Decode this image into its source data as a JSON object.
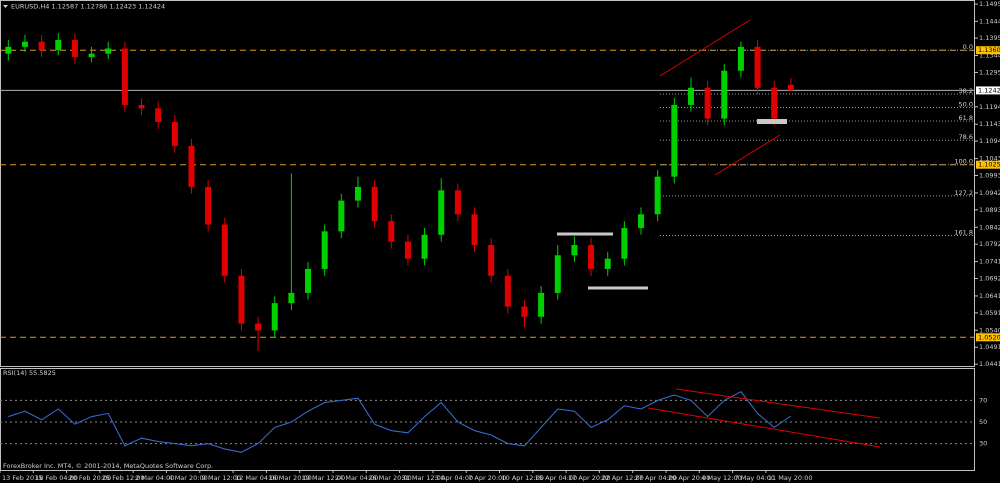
{
  "chart_data": [
    {
      "type": "candlestick",
      "title": "EURUSD,H4  1.12587 1.12786 1.12423 1.12424",
      "categories": [
        "13 Feb 2015",
        null,
        "18 Feb 04:00",
        null,
        "20 Feb 20:00",
        null,
        "25 Feb 12:00",
        null,
        "2 Mar 04:00",
        null,
        "4 Mar 20:00",
        null,
        "9 Mar 12:00",
        null,
        "12 Mar 04:00",
        null,
        "16 Mar 20:00",
        null,
        "19 Mar 12:00",
        null,
        "24 Mar 04:00",
        null,
        "26 Mar 20:00",
        null,
        "31 Mar 12:00",
        null,
        "3 Apr 04:00",
        null,
        "7 Apr 20:00",
        null,
        "10 Apr 12:00",
        null,
        "15 Apr 04:00",
        null,
        "17 Apr 20:00",
        null,
        "22 Apr 12:00",
        null,
        "27 Apr 04:00",
        null,
        "29 Apr 20:00",
        null,
        "4 May 12:00",
        null,
        "7 May 04:00",
        null,
        "11 May 20:00",
        null
      ],
      "open": [
        1.135,
        1.137,
        1.1385,
        1.136,
        1.139,
        1.134,
        1.135,
        1.1365,
        1.12,
        1.119,
        1.115,
        1.108,
        1.096,
        1.085,
        1.07,
        1.056,
        1.054,
        1.062,
        1.065,
        1.072,
        1.083,
        1.092,
        1.096,
        1.086,
        1.08,
        1.075,
        1.082,
        1.095,
        1.088,
        1.079,
        1.07,
        1.061,
        1.058,
        1.065,
        1.076,
        1.079,
        1.072,
        1.075,
        1.084,
        1.088,
        1.099,
        1.12,
        1.125,
        1.116,
        1.13,
        1.137,
        1.125,
        1.12587
      ],
      "high": [
        1.139,
        1.1405,
        1.1405,
        1.141,
        1.141,
        1.137,
        1.1385,
        1.1385,
        1.122,
        1.121,
        1.117,
        1.11,
        1.098,
        1.087,
        1.072,
        1.058,
        1.064,
        1.1,
        1.074,
        1.085,
        1.094,
        1.099,
        1.098,
        1.088,
        1.082,
        1.084,
        1.0985,
        1.097,
        1.09,
        1.081,
        1.072,
        1.063,
        1.067,
        1.079,
        1.0815,
        1.081,
        1.077,
        1.086,
        1.09,
        1.101,
        1.122,
        1.128,
        1.127,
        1.132,
        1.1385,
        1.139,
        1.127,
        1.12786
      ],
      "low": [
        1.133,
        1.1355,
        1.134,
        1.1345,
        1.132,
        1.1325,
        1.1335,
        1.118,
        1.117,
        1.113,
        1.106,
        1.094,
        1.083,
        1.068,
        1.054,
        1.048,
        1.052,
        1.06,
        1.063,
        1.07,
        1.081,
        1.09,
        1.084,
        1.078,
        1.073,
        1.073,
        1.08,
        1.086,
        1.077,
        1.068,
        1.059,
        1.055,
        1.056,
        1.063,
        1.074,
        1.07,
        1.07,
        1.073,
        1.082,
        1.086,
        1.097,
        1.118,
        1.114,
        1.114,
        1.128,
        1.123,
        1.114,
        1.12423
      ],
      "close": [
        1.137,
        1.1385,
        1.136,
        1.139,
        1.134,
        1.135,
        1.1365,
        1.12,
        1.119,
        1.115,
        1.108,
        1.096,
        1.085,
        1.07,
        1.056,
        1.054,
        1.062,
        1.065,
        1.072,
        1.083,
        1.092,
        1.096,
        1.086,
        1.08,
        1.075,
        1.082,
        1.095,
        1.088,
        1.079,
        1.07,
        1.061,
        1.058,
        1.065,
        1.076,
        1.079,
        1.072,
        1.075,
        1.084,
        1.088,
        1.099,
        1.12,
        1.125,
        1.116,
        1.13,
        1.137,
        1.125,
        1.116,
        1.12424
      ],
      "up_color": "#00d000",
      "down_color": "#e00000",
      "ylim": [
        1.0436,
        1.1507
      ],
      "yticks": [
        {
          "value": 1.04415,
          "label": "1.04415"
        },
        {
          "value": 1.0491,
          "label": "1.04910"
        },
        {
          "value": 1.05405,
          "label": "1.05405"
        },
        {
          "value": 1.05915,
          "label": "1.05915"
        },
        {
          "value": 1.0641,
          "label": "1.06410"
        },
        {
          "value": 1.0692,
          "label": "1.06920"
        },
        {
          "value": 1.07415,
          "label": "1.07415"
        },
        {
          "value": 1.07925,
          "label": "1.07925"
        },
        {
          "value": 1.0842,
          "label": "1.08420"
        },
        {
          "value": 1.0893,
          "label": "1.08930"
        },
        {
          "value": 1.09425,
          "label": "1.09425"
        },
        {
          "value": 1.09935,
          "label": "1.09935"
        },
        {
          "value": 1.1043,
          "label": "1.10430"
        },
        {
          "value": 1.1094,
          "label": "1.10940"
        },
        {
          "value": 1.11435,
          "label": "1.11435"
        },
        {
          "value": 1.11945,
          "label": "1.11945"
        },
        {
          "value": 1.1295,
          "label": "1.12950"
        },
        {
          "value": 1.13445,
          "label": "1.13445"
        },
        {
          "value": 1.13955,
          "label": "1.13955"
        },
        {
          "value": 1.14445,
          "label": "1.14445"
        },
        {
          "value": 1.1495,
          "label": "1.14950"
        }
      ],
      "current_price": 1.12424,
      "levels": [
        {
          "value": 1.136,
          "label": "1.13600"
        },
        {
          "value": 1.1025,
          "label": "1.10250"
        },
        {
          "value": 1.052,
          "label": "1.05200"
        }
      ],
      "level_color": "#d89a2a",
      "fibonacci": [
        {
          "value": 1.136,
          "label": "0.0"
        },
        {
          "value": 1.1232,
          "label": "38.2"
        },
        {
          "value": 1.11925,
          "label": "50.0"
        },
        {
          "value": 1.1153,
          "label": "61.8"
        },
        {
          "value": 1.10967,
          "label": "78.6"
        },
        {
          "value": 1.1025,
          "label": "100.0"
        },
        {
          "value": 1.09339,
          "label": "127.2"
        },
        {
          "value": 1.0818,
          "label": "161.8"
        }
      ]
    },
    {
      "type": "line",
      "title": "RSI(14) 55.5825",
      "values": [
        55,
        60,
        52,
        62,
        48,
        55,
        58,
        28,
        35,
        32,
        30,
        28,
        30,
        25,
        22,
        30,
        45,
        50,
        60,
        68,
        70,
        72,
        48,
        42,
        40,
        55,
        68,
        50,
        42,
        38,
        30,
        28,
        45,
        62,
        60,
        45,
        52,
        65,
        62,
        70,
        75,
        70,
        55,
        70,
        78,
        58,
        45,
        55.58
      ],
      "color": "#3a6fd8",
      "ylim": [
        13,
        87
      ],
      "yticks": [
        30,
        50,
        70
      ]
    }
  ],
  "footer": "ForexBroker Inc. MT4, © 2001-2014, MetaQuotes Software Corp."
}
